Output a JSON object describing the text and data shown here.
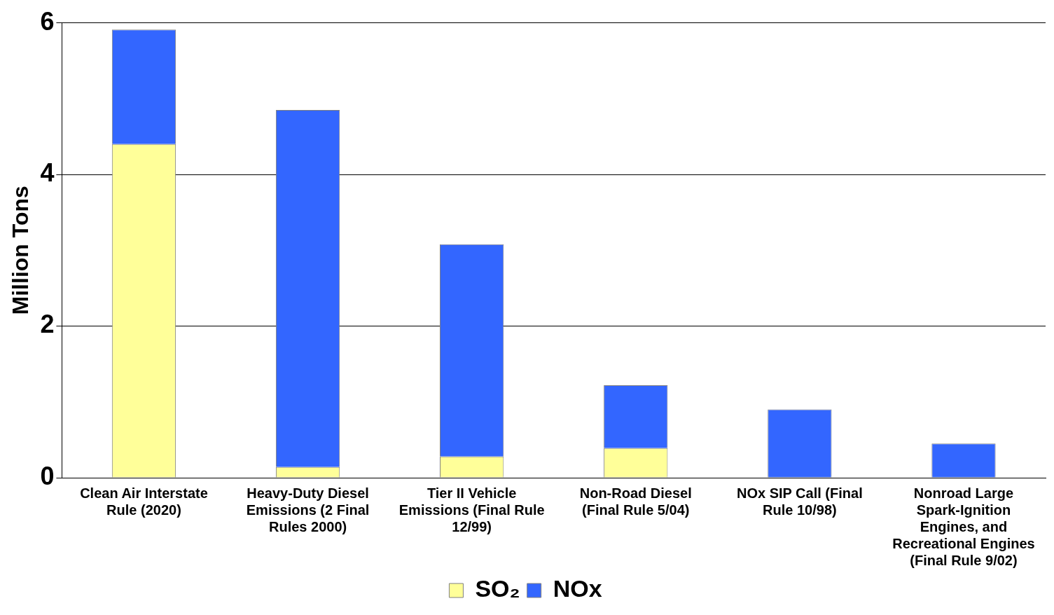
{
  "chart_data": {
    "type": "bar",
    "ylabel": "Million Tons",
    "categories": [
      "Clean Air Interstate Rule (2020)",
      "Heavy-Duty Diesel Emissions (2 Final Rules 2000)",
      "Tier II Vehicle Emissions (Final Rule 12/99)",
      "Non-Road Diesel (Final Rule 5/04)",
      "NOx SIP Call (Final Rule 10/98)",
      "Nonroad Large Spark-Ignition Engines, and Recreational Engines (Final Rule 9/02)"
    ],
    "series": [
      {
        "name": "SO₂",
        "color": "#ffff99",
        "values": [
          4.4,
          0.14,
          0.28,
          0.39,
          0,
          0
        ]
      },
      {
        "name": "NOx",
        "color": "#3366ff",
        "values": [
          1.51,
          4.71,
          2.8,
          0.83,
          0.9,
          0.45
        ]
      }
    ],
    "stacked": true,
    "ylim": [
      0,
      6
    ],
    "yticks": [
      0,
      2,
      4,
      6
    ],
    "grid": "y",
    "legend": "bottom"
  }
}
